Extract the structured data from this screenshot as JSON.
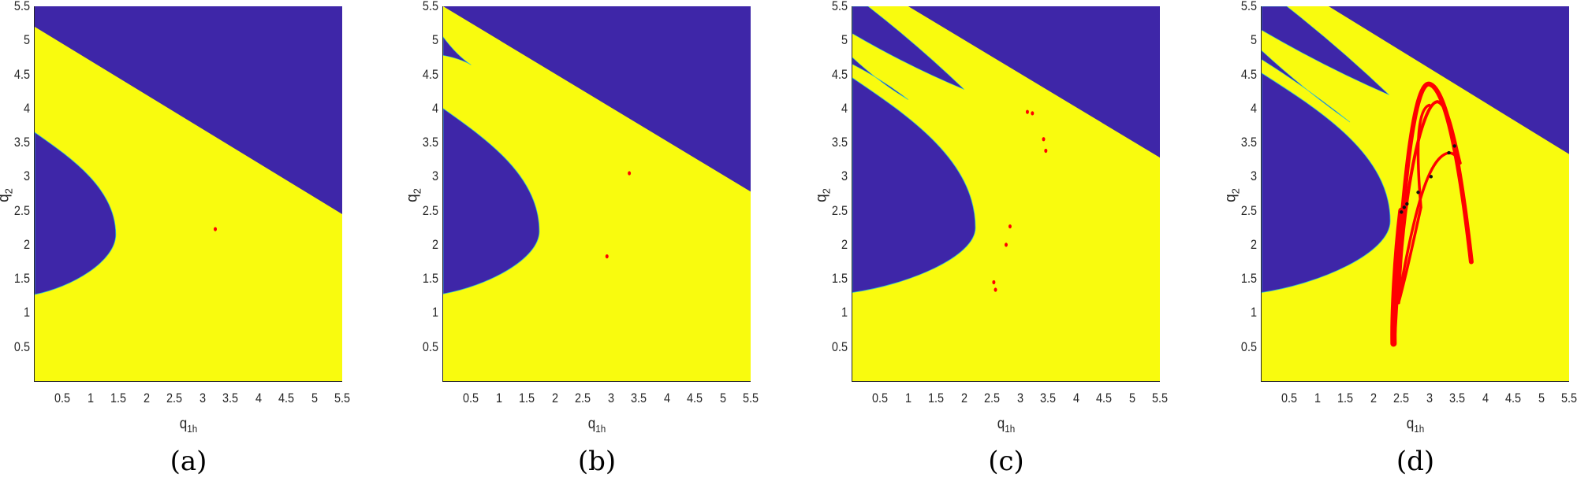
{
  "figure": {
    "colors": {
      "basin_blue": "#3E26A8",
      "basin_yellow": "#F9FB0E",
      "attractor_red": "#FF0000",
      "boundary_cyan": "#30C0D0"
    },
    "panels": [
      {
        "id": "a",
        "caption": "(a)",
        "xlabel_main": "q",
        "xlabel_sub": "1h",
        "ylabel_main": "q",
        "ylabel_sub": "2"
      },
      {
        "id": "b",
        "caption": "(b)",
        "xlabel_main": "q",
        "xlabel_sub": "1h",
        "ylabel_main": "q",
        "ylabel_sub": "2"
      },
      {
        "id": "c",
        "caption": "(c)",
        "xlabel_main": "q",
        "xlabel_sub": "1h",
        "ylabel_main": "q",
        "ylabel_sub": "2"
      },
      {
        "id": "d",
        "caption": "(d)",
        "xlabel_main": "q",
        "xlabel_sub": "1h",
        "ylabel_main": "q",
        "ylabel_sub": "2"
      }
    ],
    "xticks": [
      "0.5",
      "1",
      "1.5",
      "2",
      "2.5",
      "3",
      "3.5",
      "4",
      "4.5",
      "5",
      "5.5"
    ],
    "yticks": [
      "5.5",
      "5",
      "4.5",
      "4",
      "3.5",
      "3",
      "2.5",
      "2",
      "1.5",
      "1",
      "0.5"
    ]
  },
  "chart_data": [
    {
      "type": "heatmap",
      "title": "(a)",
      "xlabel": "q_1h",
      "ylabel": "q_2",
      "xlim": [
        0,
        5.5
      ],
      "ylim": [
        0,
        5.5
      ],
      "xticks": [
        0.5,
        1,
        1.5,
        2,
        2.5,
        3,
        3.5,
        4,
        4.5,
        5,
        5.5
      ],
      "yticks": [
        0.5,
        1,
        1.5,
        2,
        2.5,
        3,
        3.5,
        4,
        4.5,
        5,
        5.5
      ],
      "regions": [
        {
          "name": "basin_blue_upper",
          "color": "#3E26A8",
          "boundary_line": [
            [
              0,
              5.2
            ],
            [
              5.5,
              2.45
            ]
          ]
        },
        {
          "name": "basin_blue_left",
          "color": "#3E26A8",
          "boundary": [
            [
              0,
              3.65
            ],
            [
              1.45,
              2.15
            ],
            [
              0,
              1.27
            ]
          ]
        },
        {
          "name": "basin_yellow",
          "color": "#F9FB0E"
        }
      ],
      "attractor_points": [
        [
          3.23,
          2.23
        ]
      ]
    },
    {
      "type": "heatmap",
      "title": "(b)",
      "xlabel": "q_1h",
      "ylabel": "q_2",
      "xlim": [
        0,
        5.5
      ],
      "ylim": [
        0,
        5.5
      ],
      "regions": [
        {
          "name": "basin_blue_upper",
          "color": "#3E26A8",
          "boundary_line": [
            [
              0,
              5.5
            ],
            [
              5.5,
              2.78
            ]
          ]
        },
        {
          "name": "basin_blue_finger",
          "color": "#3E26A8",
          "boundary": [
            [
              0,
              5.05
            ],
            [
              0.5,
              4.64
            ],
            [
              0,
              4.78
            ]
          ]
        },
        {
          "name": "basin_blue_left",
          "color": "#3E26A8",
          "boundary": [
            [
              0,
              4.0
            ],
            [
              1.72,
              2.2
            ],
            [
              0,
              1.28
            ]
          ]
        },
        {
          "name": "basin_yellow",
          "color": "#F9FB0E"
        }
      ],
      "attractor_points": [
        [
          3.33,
          3.05
        ],
        [
          2.93,
          1.83
        ]
      ]
    },
    {
      "type": "heatmap",
      "title": "(c)",
      "xlabel": "q_1h",
      "ylabel": "q_2",
      "xlim": [
        0,
        5.5
      ],
      "ylim": [
        0,
        5.5
      ],
      "regions": [
        {
          "name": "basin_blue_upper",
          "color": "#3E26A8",
          "boundary_line": [
            [
              1.0,
              5.5
            ],
            [
              5.5,
              3.28
            ]
          ]
        },
        {
          "name": "basin_blue_finger_1",
          "color": "#3E26A8",
          "boundary": [
            [
              0,
              5.1
            ],
            [
              2.0,
              4.28
            ],
            [
              0.28,
              5.5
            ]
          ]
        },
        {
          "name": "basin_blue_finger_2",
          "color": "#3E26A8",
          "boundary": [
            [
              0,
              4.75
            ],
            [
              1.0,
              4.13
            ],
            [
              0,
              4.65
            ]
          ]
        },
        {
          "name": "basin_blue_left",
          "color": "#3E26A8",
          "boundary": [
            [
              0,
              4.45
            ],
            [
              2.2,
              2.25
            ],
            [
              0,
              1.3
            ]
          ]
        },
        {
          "name": "basin_yellow",
          "color": "#F9FB0E"
        }
      ],
      "attractor_points": [
        [
          3.13,
          3.95
        ],
        [
          3.22,
          3.93
        ],
        [
          3.42,
          3.55
        ],
        [
          3.46,
          3.38
        ],
        [
          2.82,
          2.27
        ],
        [
          2.75,
          2.0
        ],
        [
          2.53,
          1.45
        ],
        [
          2.56,
          1.34
        ]
      ]
    },
    {
      "type": "heatmap",
      "title": "(d)",
      "xlabel": "q_1h",
      "ylabel": "q_2",
      "xlim": [
        0,
        5.5
      ],
      "ylim": [
        0,
        5.5
      ],
      "regions": [
        {
          "name": "basin_blue_upper",
          "color": "#3E26A8",
          "boundary_line": [
            [
              1.2,
              5.5
            ],
            [
              5.5,
              3.33
            ]
          ]
        },
        {
          "name": "basin_blue_finger_1",
          "color": "#3E26A8",
          "boundary": [
            [
              0,
              5.15
            ],
            [
              2.28,
              4.2
            ],
            [
              0.45,
              5.5
            ]
          ]
        },
        {
          "name": "basin_blue_finger_2",
          "color": "#3E26A8",
          "boundary": [
            [
              0,
              4.85
            ],
            [
              1.58,
              3.8
            ],
            [
              0,
              4.72
            ]
          ]
        },
        {
          "name": "basin_blue_left",
          "color": "#3E26A8",
          "boundary": [
            [
              0,
              4.52
            ],
            [
              2.3,
              2.35
            ],
            [
              0,
              1.3
            ]
          ]
        },
        {
          "name": "basin_yellow",
          "color": "#F9FB0E"
        }
      ],
      "attractor_curve": {
        "color": "#FF0000",
        "description": "chaotic attractor arch",
        "extent_x": [
          2.33,
          3.75
        ],
        "extent_y": [
          0.5,
          4.38
        ],
        "peak": [
          3.0,
          4.38
        ],
        "right_end": [
          3.75,
          1.75
        ],
        "bottom_tip": [
          2.35,
          0.52
        ]
      },
      "attractor_black_points": [
        [
          2.5,
          2.48
        ],
        [
          2.55,
          2.55
        ],
        [
          2.6,
          2.6
        ],
        [
          2.8,
          2.77
        ],
        [
          3.03,
          3.0
        ],
        [
          3.35,
          3.35
        ],
        [
          3.45,
          3.45
        ]
      ]
    }
  ]
}
